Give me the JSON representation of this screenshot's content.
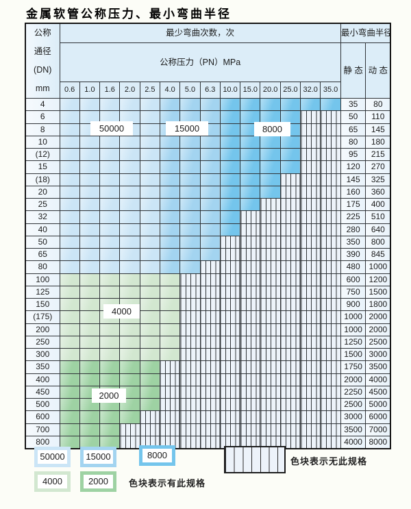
{
  "page": {
    "title": "金属软管公称压力、最小弯曲半径"
  },
  "table": {
    "corner_header_lines": [
      "公称",
      "通径",
      "(DN)",
      "mm"
    ],
    "bend_cycles_header": "最少弯曲次数，次",
    "pressure_header": "公称压力（PN）MPa",
    "radius_header": "最小弯曲半径",
    "static_header": "静 态",
    "dynamic_header": "动 态",
    "pressure_columns": [
      "0.6",
      "1.0",
      "1.6",
      "2.0",
      "2.5",
      "4.0",
      "5.0",
      "6.3",
      "10.0",
      "15.0",
      "20.0",
      "25.0",
      "32.0",
      "35.0"
    ],
    "blue_shade_by_column": [
      "50000",
      "50000",
      "50000",
      "50000",
      "50000",
      "15000",
      "15000",
      "15000",
      "8000",
      "8000",
      "8000",
      "8000",
      "8000",
      "8000"
    ],
    "rows": [
      {
        "dn": "4",
        "palette": "blue",
        "colored": 14,
        "static": "35",
        "dynamic": "80"
      },
      {
        "dn": "6",
        "palette": "blue",
        "colored": 12,
        "static": "50",
        "dynamic": "110"
      },
      {
        "dn": "8",
        "palette": "blue",
        "colored": 12,
        "static": "65",
        "dynamic": "145"
      },
      {
        "dn": "10",
        "palette": "blue",
        "colored": 12,
        "static": "80",
        "dynamic": "180"
      },
      {
        "dn": "(12)",
        "palette": "blue",
        "colored": 12,
        "static": "95",
        "dynamic": "215"
      },
      {
        "dn": "15",
        "palette": "blue",
        "colored": 12,
        "static": "120",
        "dynamic": "270"
      },
      {
        "dn": "(18)",
        "palette": "blue",
        "colored": 11,
        "static": "145",
        "dynamic": "325"
      },
      {
        "dn": "20",
        "palette": "blue",
        "colored": 11,
        "static": "160",
        "dynamic": "360"
      },
      {
        "dn": "25",
        "palette": "blue",
        "colored": 10,
        "static": "175",
        "dynamic": "400"
      },
      {
        "dn": "32",
        "palette": "blue",
        "colored": 9,
        "static": "225",
        "dynamic": "510"
      },
      {
        "dn": "40",
        "palette": "blue",
        "colored": 9,
        "static": "280",
        "dynamic": "640"
      },
      {
        "dn": "50",
        "palette": "blue",
        "colored": 8,
        "static": "350",
        "dynamic": "800"
      },
      {
        "dn": "65",
        "palette": "blue",
        "colored": 8,
        "static": "390",
        "dynamic": "845"
      },
      {
        "dn": "80",
        "palette": "blue",
        "colored": 7,
        "static": "480",
        "dynamic": "1000"
      },
      {
        "dn": "100",
        "palette": "green4000",
        "colored": 6,
        "static": "600",
        "dynamic": "1200"
      },
      {
        "dn": "125",
        "palette": "green4000",
        "colored": 6,
        "static": "750",
        "dynamic": "1500"
      },
      {
        "dn": "150",
        "palette": "green4000",
        "colored": 6,
        "static": "900",
        "dynamic": "1800"
      },
      {
        "dn": "(175)",
        "palette": "green4000",
        "colored": 6,
        "static": "1000",
        "dynamic": "2000"
      },
      {
        "dn": "200",
        "palette": "green4000",
        "colored": 6,
        "static": "1000",
        "dynamic": "2000"
      },
      {
        "dn": "250",
        "palette": "green4000",
        "colored": 6,
        "static": "1250",
        "dynamic": "2500"
      },
      {
        "dn": "300",
        "palette": "green4000",
        "colored": 6,
        "static": "1500",
        "dynamic": "3000"
      },
      {
        "dn": "350",
        "palette": "green2000",
        "colored": 5,
        "static": "1750",
        "dynamic": "3500"
      },
      {
        "dn": "400",
        "palette": "green2000",
        "colored": 5,
        "static": "2000",
        "dynamic": "4000"
      },
      {
        "dn": "450",
        "palette": "green2000",
        "colored": 5,
        "static": "2250",
        "dynamic": "4500"
      },
      {
        "dn": "500",
        "palette": "green2000",
        "colored": 5,
        "static": "2500",
        "dynamic": "5000"
      },
      {
        "dn": "600",
        "palette": "green2000",
        "colored": 4,
        "static": "3000",
        "dynamic": "6000"
      },
      {
        "dn": "700",
        "palette": "green2000",
        "colored": 3,
        "static": "3500",
        "dynamic": "7000"
      },
      {
        "dn": "800",
        "palette": "green2000",
        "colored": 3,
        "static": "4000",
        "dynamic": "8000"
      }
    ],
    "overlay_labels": [
      {
        "text": "50000"
      },
      {
        "text": "15000"
      },
      {
        "text": "8000"
      },
      {
        "text": "4000"
      },
      {
        "text": "2000"
      }
    ]
  },
  "legend": {
    "swatches": [
      {
        "value": "50000"
      },
      {
        "value": "15000"
      },
      {
        "value": "8000"
      },
      {
        "value": "4000"
      },
      {
        "value": "2000"
      }
    ],
    "has_spec_text": "色块表示有此规格",
    "no_spec_text": "色块表示无此规格"
  },
  "colors": {
    "page_bg": "#fcfdf7",
    "blue_50000": "#cbe5f6",
    "blue_15000": "#a3d4f0",
    "blue_8000": "#74c5ec",
    "green_4000": "#d2e7d0",
    "green_2000": "#9ed2a3",
    "no_spec_bg": "#edf3fa",
    "header_bg": "#dcedf8",
    "label_cell_bg": "#e9f3fb",
    "grid_line": "#2f3337"
  }
}
